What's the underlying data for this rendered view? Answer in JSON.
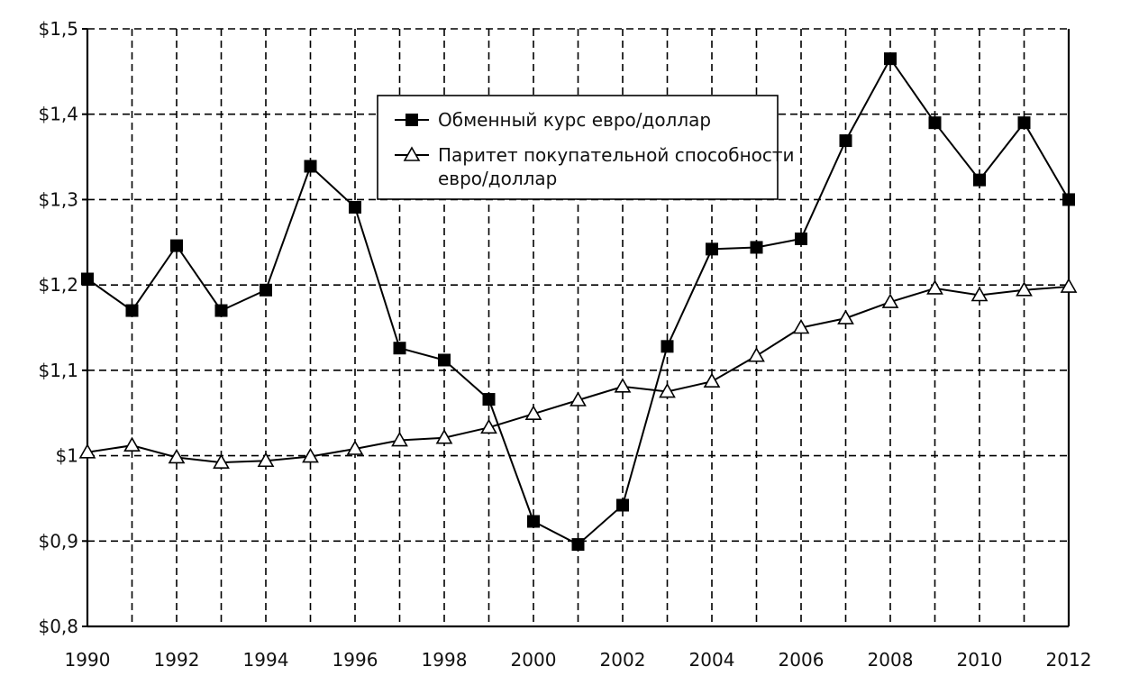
{
  "chart_data": {
    "type": "line",
    "x": [
      1990,
      1991,
      1992,
      1993,
      1994,
      1995,
      1996,
      1997,
      1998,
      1999,
      2000,
      2001,
      2002,
      2003,
      2004,
      2005,
      2006,
      2007,
      2008,
      2009,
      2010,
      2011,
      2012
    ],
    "x_ticks": [
      1990,
      1992,
      1994,
      1996,
      1998,
      2000,
      2002,
      2004,
      2006,
      2008,
      2010,
      2012
    ],
    "x_tick_labels": [
      "1990",
      "1992",
      "1994",
      "1996",
      "1998",
      "2000",
      "2002",
      "2004",
      "2006",
      "2008",
      "2010",
      "2012"
    ],
    "y_ticks": [
      0.8,
      0.9,
      1.0,
      1.1,
      1.2,
      1.3,
      1.4,
      1.5
    ],
    "y_tick_labels": [
      "$0,8",
      "$0,9",
      "$1",
      "$1,1",
      "$1,2",
      "$1,3",
      "$1,4",
      "$1,5"
    ],
    "xlim": [
      1990,
      2012
    ],
    "ylim": [
      0.8,
      1.5
    ],
    "grid": true,
    "legend_position": "top-center",
    "series": [
      {
        "name": "Обменный курс евро/доллар",
        "marker": "filled-square",
        "values": [
          1.207,
          1.17,
          1.246,
          1.17,
          1.194,
          1.339,
          1.291,
          1.126,
          1.112,
          1.066,
          0.923,
          0.896,
          0.942,
          1.128,
          1.242,
          1.244,
          1.254,
          1.369,
          1.465,
          1.39,
          1.323,
          1.39,
          1.3
        ]
      },
      {
        "name": "Паритет покупательной способности евро/доллар",
        "marker": "open-triangle",
        "values": [
          1.004,
          1.012,
          0.998,
          0.992,
          0.994,
          0.999,
          1.008,
          1.018,
          1.021,
          1.033,
          1.049,
          1.065,
          1.081,
          1.075,
          1.087,
          1.117,
          1.15,
          1.161,
          1.18,
          1.196,
          1.188,
          1.194,
          1.198
        ]
      }
    ]
  },
  "legend": {
    "series1_label": "Обменный курс евро/доллар",
    "series2_label_line1": "Паритет покупательной способности",
    "series2_label_line2": "евро/доллар"
  }
}
